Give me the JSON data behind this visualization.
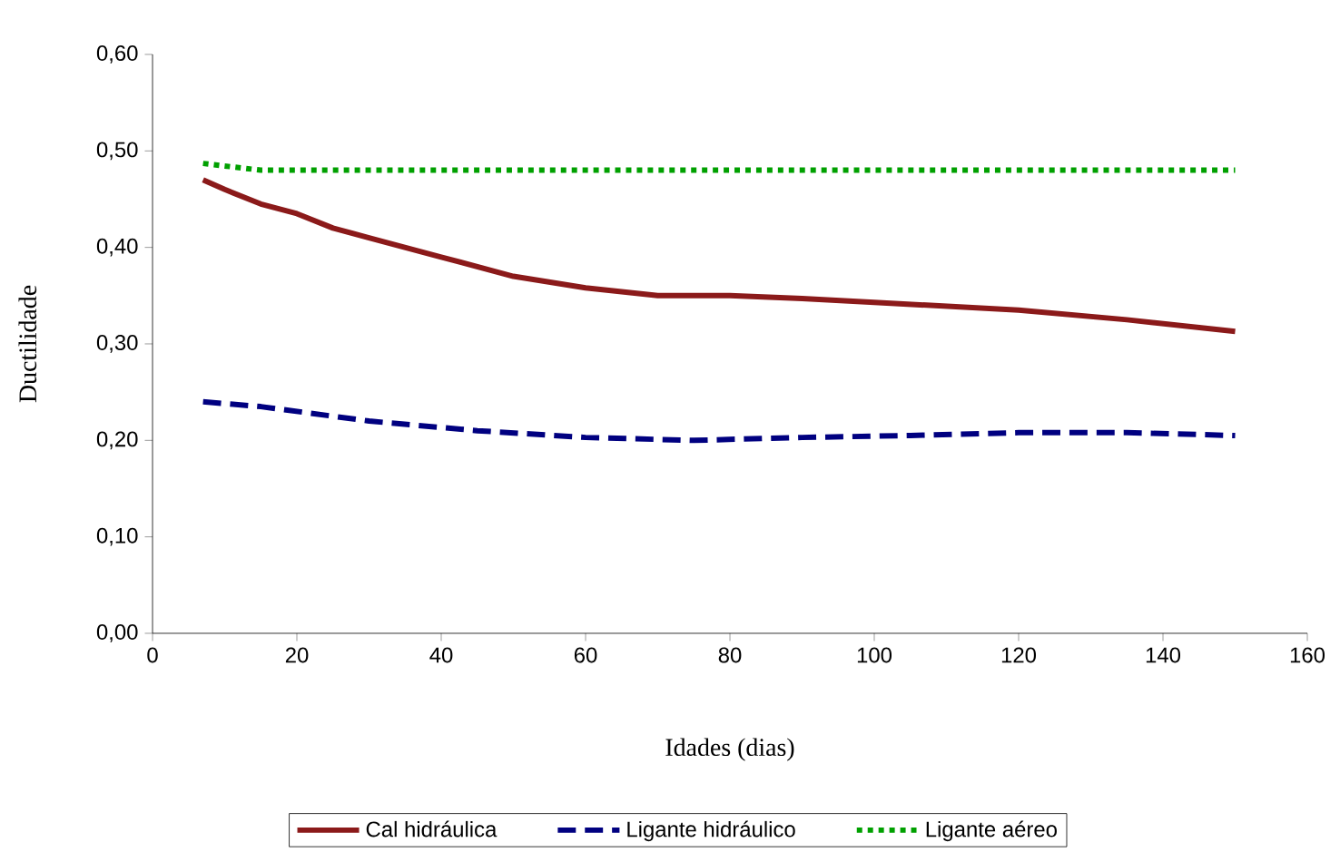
{
  "chart_data": {
    "type": "line",
    "xlabel": "Idades (dias)",
    "ylabel": "Ductilidade",
    "xlim": [
      0,
      160
    ],
    "ylim": [
      0,
      0.6
    ],
    "xticks": [
      0,
      20,
      40,
      60,
      80,
      100,
      120,
      140,
      160
    ],
    "yticks": [
      {
        "value": 0,
        "label": "0,00"
      },
      {
        "value": 0.1,
        "label": "0,10"
      },
      {
        "value": 0.2,
        "label": "0,20"
      },
      {
        "value": 0.3,
        "label": "0,30"
      },
      {
        "value": 0.4,
        "label": "0,40"
      },
      {
        "value": 0.5,
        "label": "0,50"
      },
      {
        "value": 0.6,
        "label": "0,60"
      }
    ],
    "grid": false,
    "legend": "bottom",
    "marker": "none",
    "series": [
      {
        "name": "Cal hidráulica",
        "color": "#8b1a1a",
        "line_style": "solid",
        "x": [
          7,
          10,
          15,
          20,
          25,
          30,
          35,
          40,
          50,
          60,
          70,
          80,
          90,
          100,
          120,
          135,
          150
        ],
        "values": [
          0.47,
          0.46,
          0.445,
          0.435,
          0.42,
          0.41,
          0.4,
          0.39,
          0.37,
          0.358,
          0.35,
          0.35,
          0.347,
          0.343,
          0.335,
          0.325,
          0.313
        ]
      },
      {
        "name": "Ligante hidráulico",
        "color": "#000080",
        "line_style": "dashed",
        "x": [
          7,
          15,
          30,
          45,
          60,
          75,
          90,
          105,
          120,
          135,
          150
        ],
        "values": [
          0.24,
          0.235,
          0.22,
          0.21,
          0.203,
          0.2,
          0.203,
          0.205,
          0.208,
          0.208,
          0.205
        ]
      },
      {
        "name": "Ligante aéreo",
        "color": "#00a000",
        "line_style": "dotted",
        "x": [
          7,
          15,
          30,
          60,
          90,
          120,
          150
        ],
        "values": [
          0.487,
          0.48,
          0.48,
          0.48,
          0.48,
          0.48,
          0.48
        ]
      }
    ]
  }
}
